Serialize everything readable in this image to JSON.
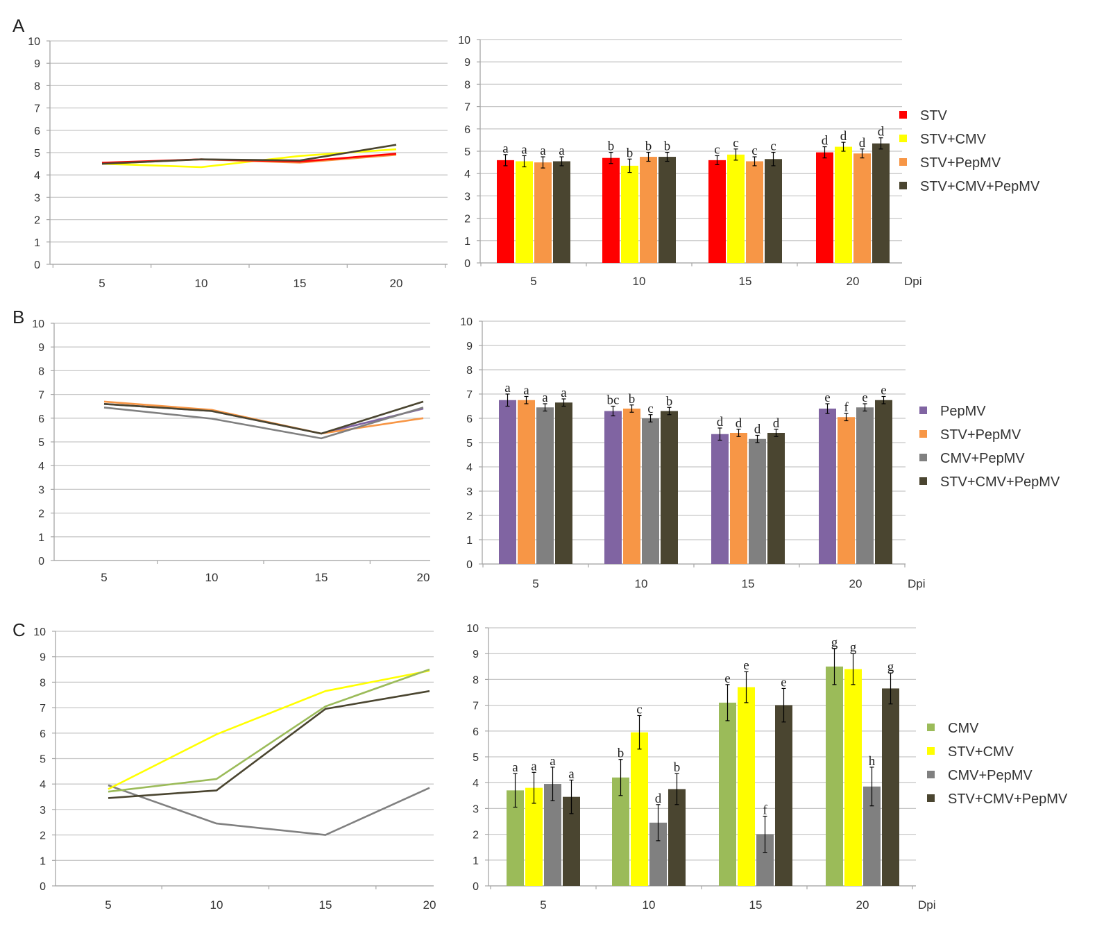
{
  "colors": {
    "STV": "#ff0000",
    "STV+CMV": "#ffff00",
    "STV+PepMV": "#f79646",
    "STV+CMV+PepMV": "#4a4530",
    "PepMV": "#8064a2",
    "CMV+PepMV": "#808080",
    "CMV": "#9bbb59",
    "grid": "#c8c8c8",
    "axis": "#a6a6a6"
  },
  "chart_data": [
    {
      "panel": "A",
      "type": "line",
      "title": "",
      "categories": [
        "5",
        "10",
        "15",
        "20"
      ],
      "yticks": [
        "0",
        "1",
        "2",
        "3",
        "4",
        "5",
        "6",
        "7",
        "8",
        "9",
        "10"
      ],
      "ylim": [
        0,
        10
      ],
      "series": [
        {
          "name": "STV+CMV",
          "values": [
            4.5,
            4.35,
            4.85,
            5.15
          ]
        },
        {
          "name": "STV+PepMV",
          "values": [
            4.5,
            4.7,
            4.55,
            4.9
          ]
        },
        {
          "name": "STV",
          "values": [
            4.55,
            4.7,
            4.6,
            4.95
          ]
        },
        {
          "name": "STV+CMV+PepMV",
          "values": [
            4.5,
            4.7,
            4.65,
            5.35
          ]
        }
      ]
    },
    {
      "panel": "A",
      "type": "bar",
      "title": "",
      "xlabel": "Dpi",
      "categories": [
        "5",
        "10",
        "15",
        "20"
      ],
      "yticks": [
        "0",
        "1",
        "2",
        "3",
        "4",
        "5",
        "6",
        "7",
        "8",
        "9",
        "10"
      ],
      "ylim": [
        0,
        10
      ],
      "legend_position": "right",
      "series": [
        {
          "name": "STV",
          "values": [
            4.6,
            4.7,
            4.6,
            4.95
          ],
          "errors": [
            0.25,
            0.25,
            0.2,
            0.25
          ],
          "labels": [
            "a",
            "b",
            "c",
            "d"
          ]
        },
        {
          "name": "STV+CMV",
          "values": [
            4.55,
            4.35,
            4.85,
            5.2
          ],
          "errors": [
            0.25,
            0.3,
            0.25,
            0.2
          ],
          "labels": [
            "a",
            "b",
            "c",
            "d"
          ]
        },
        {
          "name": "STV+PepMV",
          "values": [
            4.5,
            4.75,
            4.55,
            4.9
          ],
          "errors": [
            0.25,
            0.2,
            0.2,
            0.2
          ],
          "labels": [
            "a",
            "b",
            "c",
            "d"
          ]
        },
        {
          "name": "STV+CMV+PepMV",
          "values": [
            4.55,
            4.75,
            4.65,
            5.35
          ],
          "errors": [
            0.2,
            0.2,
            0.3,
            0.25
          ],
          "labels": [
            "a",
            "b",
            "c",
            "d"
          ]
        }
      ]
    },
    {
      "panel": "B",
      "type": "line",
      "title": "",
      "categories": [
        "5",
        "10",
        "15",
        "20"
      ],
      "yticks": [
        "0",
        "1",
        "2",
        "3",
        "4",
        "5",
        "6",
        "7",
        "8",
        "9",
        "10"
      ],
      "ylim": [
        0,
        10
      ],
      "series": [
        {
          "name": "PepMV",
          "values": [
            6.6,
            6.3,
            5.35,
            6.4
          ]
        },
        {
          "name": "STV+PepMV",
          "values": [
            6.7,
            6.35,
            5.35,
            6.0
          ]
        },
        {
          "name": "CMV+PepMV",
          "values": [
            6.45,
            5.98,
            5.15,
            6.45
          ]
        },
        {
          "name": "STV+CMV+PepMV",
          "values": [
            6.6,
            6.3,
            5.35,
            6.7
          ]
        }
      ]
    },
    {
      "panel": "B",
      "type": "bar",
      "title": "",
      "xlabel": "Dpi",
      "categories": [
        "5",
        "10",
        "15",
        "20"
      ],
      "yticks": [
        "0",
        "1",
        "2",
        "3",
        "4",
        "5",
        "6",
        "7",
        "8",
        "9",
        "10"
      ],
      "ylim": [
        0,
        10
      ],
      "legend_position": "right",
      "series": [
        {
          "name": "PepMV",
          "values": [
            6.75,
            6.3,
            5.35,
            6.4
          ],
          "errors": [
            0.25,
            0.2,
            0.25,
            0.2
          ],
          "labels": [
            "a",
            "bc",
            "d",
            "e"
          ]
        },
        {
          "name": "STV+PepMV",
          "values": [
            6.75,
            6.4,
            5.4,
            6.05
          ],
          "errors": [
            0.15,
            0.15,
            0.15,
            0.15
          ],
          "labels": [
            "a",
            "b",
            "d",
            "f"
          ]
        },
        {
          "name": "CMV+PepMV",
          "values": [
            6.45,
            6.0,
            5.15,
            6.45
          ],
          "errors": [
            0.15,
            0.15,
            0.15,
            0.15
          ],
          "labels": [
            "a",
            "c",
            "d",
            "e"
          ]
        },
        {
          "name": "STV+CMV+PepMV",
          "values": [
            6.65,
            6.3,
            5.4,
            6.75
          ],
          "errors": [
            0.15,
            0.15,
            0.15,
            0.15
          ],
          "labels": [
            "a",
            "b",
            "d",
            "e"
          ]
        }
      ]
    },
    {
      "panel": "C",
      "type": "line",
      "title": "",
      "categories": [
        "5",
        "10",
        "15",
        "20"
      ],
      "yticks": [
        "0",
        "1",
        "2",
        "3",
        "4",
        "5",
        "6",
        "7",
        "8",
        "9",
        "10"
      ],
      "ylim": [
        0,
        10
      ],
      "series": [
        {
          "name": "CMV+PepMV",
          "values": [
            3.95,
            2.45,
            2.0,
            3.85
          ]
        },
        {
          "name": "STV+CMV",
          "values": [
            3.8,
            5.95,
            7.65,
            8.45
          ]
        },
        {
          "name": "CMV",
          "values": [
            3.7,
            4.2,
            7.05,
            8.5
          ]
        },
        {
          "name": "STV+CMV+PepMV",
          "values": [
            3.45,
            3.75,
            6.95,
            7.65
          ]
        }
      ]
    },
    {
      "panel": "C",
      "type": "bar",
      "title": "",
      "xlabel": "Dpi",
      "categories": [
        "5",
        "10",
        "15",
        "20"
      ],
      "yticks": [
        "0",
        "1",
        "2",
        "3",
        "4",
        "5",
        "6",
        "7",
        "8",
        "9",
        "10"
      ],
      "ylim": [
        0,
        10
      ],
      "legend_position": "right",
      "series": [
        {
          "name": "CMV",
          "values": [
            3.7,
            4.2,
            7.1,
            8.5
          ],
          "errors": [
            0.65,
            0.7,
            0.7,
            0.7
          ],
          "labels": [
            "a",
            "b",
            "e",
            "g"
          ]
        },
        {
          "name": "STV+CMV",
          "values": [
            3.8,
            5.95,
            7.7,
            8.4
          ],
          "errors": [
            0.6,
            0.65,
            0.6,
            0.6
          ],
          "labels": [
            "a",
            "c",
            "e",
            "g"
          ]
        },
        {
          "name": "CMV+PepMV",
          "values": [
            3.95,
            2.45,
            2.0,
            3.85
          ],
          "errors": [
            0.65,
            0.7,
            0.7,
            0.75
          ],
          "labels": [
            "a",
            "d",
            "f",
            "h"
          ]
        },
        {
          "name": "STV+CMV+PepMV",
          "values": [
            3.45,
            3.75,
            7.0,
            7.65
          ],
          "errors": [
            0.65,
            0.6,
            0.65,
            0.6
          ],
          "labels": [
            "a",
            "b",
            "e",
            "g"
          ]
        }
      ]
    }
  ],
  "panel_labels": [
    "A",
    "B",
    "C"
  ]
}
